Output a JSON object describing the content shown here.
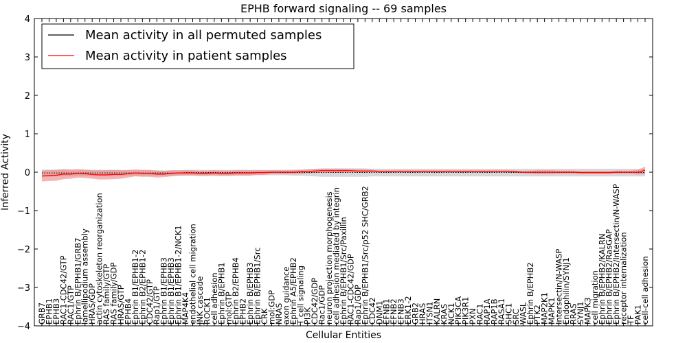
{
  "chart_data": {
    "type": "line",
    "title": "EPHB forward signaling -- 69 samples",
    "xlabel": "Cellular Entities",
    "ylabel": "Inferred Activity",
    "ylim": [
      -4,
      4
    ],
    "yticks": [
      "4",
      "3",
      "2",
      "1",
      "0",
      "−1",
      "−2",
      "−3",
      "−4"
    ],
    "legend": {
      "location": "top-left",
      "entries": [
        {
          "name": "Mean activity in all permuted samples",
          "color": "#000000"
        },
        {
          "name": "Mean activity in patient samples",
          "color": "#ff0000"
        }
      ]
    },
    "colors": {
      "permuted": "#000000",
      "patient": "#ff0000",
      "patient_band": "#f08080",
      "permuted_band": "#c8c8c8"
    },
    "categories": [
      "GRB7",
      "EPHB1",
      "EPHB3",
      "RAC1-CDC42/GTP",
      "RAC1/GTP",
      "Ephrin B/EPHB1/GRB7",
      "lamellipodium assembly",
      "HRAS/GDP",
      "actin cytoskeleton reorganization",
      "RAS family/GTP",
      "RAS family/GDP",
      "HRAS/GTP",
      "EPHB4",
      "Ephrin B1/EPHB1-2",
      "Ephrin B2/EPHB1-2",
      "CDC42/GTP",
      "Rap1/GTP",
      "Ephrin B1/EPHB3",
      "Ephrin B1/EPHB3",
      "Ephrin B1/EPHB1-2/NCK1",
      "MAP4K4",
      "endothelial cell migration",
      "JNK cascade",
      "ROCK1",
      "cell adhesion",
      "Ephrin B/EPHB1",
      "mol:GTP",
      "Ephrin B2/EPHB4",
      "EPHB2",
      "Ephrin B/EPHB3",
      "Ephrin B/EPHB1/Src",
      "CRK",
      "mol:GDP",
      "NRAS",
      "axon guidance",
      "Ephrin A5/EPHB2",
      "T cell signaling",
      "PI3K",
      "CDC42/GDP",
      "Rac1/GDP",
      "neuron projection morphogenesis",
      "cell adhesion mediated by integrin",
      "Ephrin B/EPHB1/Src/Paxillin",
      "RAC1-CDC42/GDP",
      "Rap1/GDP",
      "Ephrin B/EPHB1/Src/p52 SHC/GRB2",
      "CDC42",
      "DNM1",
      "EFNB1",
      "EFNB2",
      "EFNB3",
      "ERK1-2",
      "GRB2",
      "HRAS",
      "ITSN1",
      "KALRN",
      "KRAS",
      "NCK1",
      "PIK3CA",
      "PIK3R1",
      "PXN",
      "RAC1",
      "RAP1A",
      "RAP1B",
      "RASA1",
      "SHC1",
      "SRC",
      "WASL",
      "Ephrin B/EPHB2",
      "PTK2",
      "MAP2K1",
      "MAPK1",
      "Intersectin/N-WASP",
      "Endophilin/SYNJ1",
      "RRAS",
      "SYNJ1",
      "MAPK3",
      "cell migration",
      "Ephrin B/EPHB2/KALRN",
      "Ephrin B/EPHB2/RasGAP",
      "Ephrin B/EPHB2/Intersectin/N-WASP",
      "receptor internalization",
      "TF",
      "PAK1",
      "cell-cell adhesion"
    ],
    "series": [
      {
        "name": "Mean activity in all permuted samples",
        "values": [
          -0.02,
          -0.02,
          -0.02,
          -0.02,
          -0.02,
          -0.02,
          -0.02,
          -0.02,
          -0.02,
          -0.02,
          -0.02,
          -0.02,
          -0.02,
          -0.02,
          -0.02,
          -0.02,
          -0.02,
          -0.02,
          -0.02,
          -0.02,
          -0.01,
          -0.01,
          -0.01,
          -0.01,
          -0.01,
          -0.01,
          -0.01,
          -0.01,
          -0.01,
          -0.01,
          -0.01,
          -0.01,
          -0.01,
          -0.01,
          -0.01,
          -0.01,
          -0.01,
          -0.01,
          -0.01,
          -0.01,
          -0.01,
          -0.01,
          -0.01,
          -0.01,
          -0.01,
          -0.01,
          -0.01,
          -0.01,
          -0.01,
          -0.01,
          -0.01,
          -0.01,
          -0.01,
          -0.01,
          -0.01,
          -0.01,
          -0.01,
          -0.01,
          -0.01,
          -0.01,
          -0.01,
          -0.01,
          -0.01,
          -0.01,
          -0.01,
          -0.01,
          -0.01,
          -0.01,
          -0.01,
          -0.01,
          -0.01,
          -0.01,
          -0.01,
          -0.01,
          -0.01,
          -0.01,
          -0.01,
          -0.01,
          -0.01,
          -0.01,
          -0.01,
          -0.01,
          -0.01,
          -0.01,
          -0.01
        ]
      },
      {
        "name": "Mean activity in patient samples",
        "values": [
          -0.1,
          -0.09,
          -0.08,
          -0.05,
          -0.05,
          -0.03,
          -0.04,
          -0.06,
          -0.07,
          -0.07,
          -0.06,
          -0.06,
          -0.04,
          -0.02,
          -0.03,
          -0.03,
          -0.05,
          -0.05,
          -0.03,
          -0.02,
          -0.02,
          -0.02,
          -0.03,
          -0.03,
          -0.02,
          -0.03,
          -0.03,
          -0.02,
          -0.02,
          -0.02,
          -0.01,
          -0.01,
          0.0,
          0.0,
          0.0,
          0.0,
          0.01,
          0.02,
          0.03,
          0.04,
          0.04,
          0.04,
          0.04,
          0.04,
          0.03,
          0.03,
          0.03,
          0.02,
          0.02,
          0.02,
          0.02,
          0.02,
          0.02,
          0.02,
          0.02,
          0.02,
          0.02,
          0.02,
          0.02,
          0.02,
          0.02,
          0.02,
          0.02,
          0.02,
          0.02,
          0.02,
          0.01,
          0.0,
          0.0,
          0.0,
          0.0,
          0.0,
          0.0,
          0.0,
          0.0,
          -0.01,
          -0.01,
          -0.01,
          -0.01,
          -0.01,
          0.0,
          0.0,
          0.0,
          0.0,
          0.05
        ]
      }
    ],
    "patient_band_halfwidth": [
      0.14,
      0.14,
      0.14,
      0.13,
      0.12,
      0.11,
      0.11,
      0.11,
      0.12,
      0.12,
      0.12,
      0.11,
      0.1,
      0.09,
      0.09,
      0.09,
      0.09,
      0.08,
      0.08,
      0.07,
      0.07,
      0.07,
      0.07,
      0.07,
      0.07,
      0.07,
      0.07,
      0.07,
      0.07,
      0.07,
      0.06,
      0.06,
      0.05,
      0.05,
      0.05,
      0.05,
      0.05,
      0.05,
      0.05,
      0.05,
      0.05,
      0.05,
      0.05,
      0.04,
      0.04,
      0.04,
      0.03,
      0.03,
      0.03,
      0.03,
      0.03,
      0.03,
      0.03,
      0.03,
      0.03,
      0.03,
      0.03,
      0.03,
      0.03,
      0.03,
      0.03,
      0.03,
      0.03,
      0.03,
      0.03,
      0.03,
      0.03,
      0.03,
      0.04,
      0.05,
      0.05,
      0.05,
      0.04,
      0.04,
      0.04,
      0.04,
      0.04,
      0.04,
      0.04,
      0.04,
      0.04,
      0.04,
      0.04,
      0.06,
      0.1
    ],
    "permuted_band_halfwidth": [
      0.09,
      0.09,
      0.09,
      0.09,
      0.08,
      0.08,
      0.08,
      0.08,
      0.08,
      0.08,
      0.08,
      0.08,
      0.07,
      0.07,
      0.07,
      0.07,
      0.07,
      0.07,
      0.07,
      0.07,
      0.07,
      0.07,
      0.07,
      0.07,
      0.07,
      0.07,
      0.07,
      0.07,
      0.07,
      0.07,
      0.07,
      0.07,
      0.07,
      0.07,
      0.07,
      0.08,
      0.08,
      0.09,
      0.1,
      0.11,
      0.11,
      0.11,
      0.11,
      0.11,
      0.11,
      0.11,
      0.1,
      0.1,
      0.1,
      0.1,
      0.1,
      0.1,
      0.1,
      0.1,
      0.1,
      0.1,
      0.1,
      0.1,
      0.1,
      0.1,
      0.1,
      0.1,
      0.1,
      0.1,
      0.1,
      0.1,
      0.1,
      0.1,
      0.1,
      0.1,
      0.1,
      0.1,
      0.1,
      0.1,
      0.1,
      0.1,
      0.1,
      0.1,
      0.1,
      0.1,
      0.1,
      0.1,
      0.1,
      0.1,
      0.1
    ]
  }
}
